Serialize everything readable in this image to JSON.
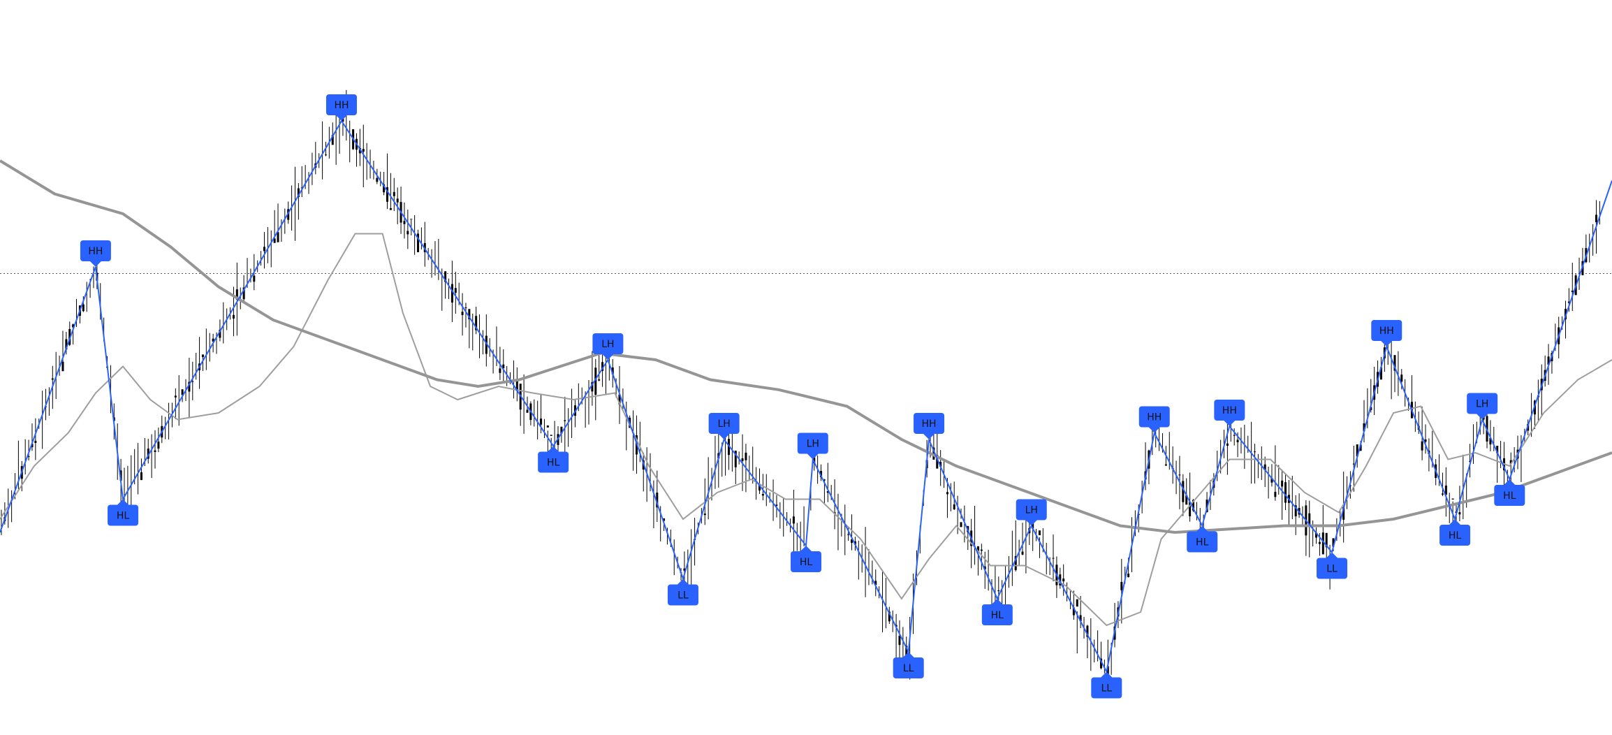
{
  "chart_data": {
    "type": "line",
    "title": "",
    "xlabel": "",
    "ylabel": "",
    "grid": false,
    "legend": "none",
    "colors": {
      "candle": "#000000",
      "zigzag": "#2962ff",
      "pivot_marker": "#2962ff",
      "fast_ma": "#9e9e9e",
      "slow_ma": "#959595",
      "reference_line": "#555555"
    },
    "reference_level": 63,
    "ylim": [
      0,
      100
    ],
    "xlim": [
      0,
      236
    ],
    "zigzag": [
      {
        "x": 0,
        "y": 24
      },
      {
        "x": 14,
        "y": 64,
        "label": "HH",
        "side": "above"
      },
      {
        "x": 18,
        "y": 29,
        "label": "HL",
        "side": "below"
      },
      {
        "x": 50,
        "y": 86,
        "label": "HH",
        "side": "above"
      },
      {
        "x": 81,
        "y": 37,
        "label": "HL",
        "side": "below"
      },
      {
        "x": 89,
        "y": 50,
        "label": "LH",
        "side": "above"
      },
      {
        "x": 100,
        "y": 17,
        "label": "LL",
        "side": "below"
      },
      {
        "x": 106,
        "y": 38,
        "label": "LH",
        "side": "above"
      },
      {
        "x": 118,
        "y": 22,
        "label": "HL",
        "side": "below"
      },
      {
        "x": 119,
        "y": 35,
        "label": "LH",
        "side": "above"
      },
      {
        "x": 133,
        "y": 6,
        "label": "LL",
        "side": "below"
      },
      {
        "x": 136,
        "y": 38,
        "label": "HH",
        "side": "above"
      },
      {
        "x": 146,
        "y": 14,
        "label": "HL",
        "side": "below"
      },
      {
        "x": 151,
        "y": 25,
        "label": "LH",
        "side": "above"
      },
      {
        "x": 162,
        "y": 3,
        "label": "LL",
        "side": "below"
      },
      {
        "x": 169,
        "y": 39,
        "label": "HH",
        "side": "above"
      },
      {
        "x": 176,
        "y": 25,
        "label": "HL",
        "side": "below"
      },
      {
        "x": 180,
        "y": 40,
        "label": "HH",
        "side": "above"
      },
      {
        "x": 195,
        "y": 21,
        "label": "LL",
        "side": "below"
      },
      {
        "x": 203,
        "y": 52,
        "label": "HH",
        "side": "above"
      },
      {
        "x": 213,
        "y": 26,
        "label": "HL",
        "side": "below"
      },
      {
        "x": 217,
        "y": 41,
        "label": "LH",
        "side": "above"
      },
      {
        "x": 221,
        "y": 32,
        "label": "HL",
        "side": "below"
      },
      {
        "x": 236,
        "y": 77
      }
    ],
    "slow_ma": [
      {
        "x": 0,
        "y": 80
      },
      {
        "x": 8,
        "y": 75
      },
      {
        "x": 18,
        "y": 72
      },
      {
        "x": 25,
        "y": 67
      },
      {
        "x": 32,
        "y": 61
      },
      {
        "x": 40,
        "y": 56
      },
      {
        "x": 48,
        "y": 53
      },
      {
        "x": 56,
        "y": 50
      },
      {
        "x": 64,
        "y": 47
      },
      {
        "x": 70,
        "y": 46
      },
      {
        "x": 76,
        "y": 47
      },
      {
        "x": 82,
        "y": 49
      },
      {
        "x": 88,
        "y": 51
      },
      {
        "x": 96,
        "y": 50
      },
      {
        "x": 104,
        "y": 47
      },
      {
        "x": 114,
        "y": 45.5
      },
      {
        "x": 124,
        "y": 43
      },
      {
        "x": 132,
        "y": 38
      },
      {
        "x": 140,
        "y": 34
      },
      {
        "x": 148,
        "y": 31
      },
      {
        "x": 156,
        "y": 28
      },
      {
        "x": 164,
        "y": 25
      },
      {
        "x": 172,
        "y": 24
      },
      {
        "x": 180,
        "y": 24.5
      },
      {
        "x": 188,
        "y": 25
      },
      {
        "x": 196,
        "y": 25
      },
      {
        "x": 204,
        "y": 26
      },
      {
        "x": 212,
        "y": 28
      },
      {
        "x": 220,
        "y": 30
      },
      {
        "x": 228,
        "y": 33
      },
      {
        "x": 236,
        "y": 36
      }
    ],
    "fast_ma": [
      {
        "x": 0,
        "y": 26
      },
      {
        "x": 5,
        "y": 34
      },
      {
        "x": 10,
        "y": 39
      },
      {
        "x": 14,
        "y": 45
      },
      {
        "x": 18,
        "y": 49
      },
      {
        "x": 22,
        "y": 44
      },
      {
        "x": 26,
        "y": 41
      },
      {
        "x": 32,
        "y": 42
      },
      {
        "x": 38,
        "y": 46
      },
      {
        "x": 43,
        "y": 52
      },
      {
        "x": 48,
        "y": 62
      },
      {
        "x": 52,
        "y": 69
      },
      {
        "x": 56,
        "y": 69
      },
      {
        "x": 59,
        "y": 57
      },
      {
        "x": 63,
        "y": 46
      },
      {
        "x": 67,
        "y": 44
      },
      {
        "x": 73,
        "y": 46
      },
      {
        "x": 78,
        "y": 45
      },
      {
        "x": 84,
        "y": 44
      },
      {
        "x": 90,
        "y": 45
      },
      {
        "x": 95,
        "y": 34
      },
      {
        "x": 100,
        "y": 26
      },
      {
        "x": 105,
        "y": 30
      },
      {
        "x": 110,
        "y": 32
      },
      {
        "x": 115,
        "y": 29
      },
      {
        "x": 120,
        "y": 29
      },
      {
        "x": 126,
        "y": 23
      },
      {
        "x": 132,
        "y": 14
      },
      {
        "x": 136,
        "y": 20
      },
      {
        "x": 140,
        "y": 25
      },
      {
        "x": 145,
        "y": 19
      },
      {
        "x": 150,
        "y": 19
      },
      {
        "x": 156,
        "y": 16
      },
      {
        "x": 162,
        "y": 10
      },
      {
        "x": 167,
        "y": 12
      },
      {
        "x": 170,
        "y": 23
      },
      {
        "x": 175,
        "y": 29
      },
      {
        "x": 180,
        "y": 35
      },
      {
        "x": 186,
        "y": 35
      },
      {
        "x": 191,
        "y": 30
      },
      {
        "x": 196,
        "y": 27
      },
      {
        "x": 200,
        "y": 34
      },
      {
        "x": 204,
        "y": 42
      },
      {
        "x": 208,
        "y": 43
      },
      {
        "x": 212,
        "y": 35
      },
      {
        "x": 216,
        "y": 36
      },
      {
        "x": 221,
        "y": 34
      },
      {
        "x": 226,
        "y": 42
      },
      {
        "x": 231,
        "y": 47
      },
      {
        "x": 236,
        "y": 50
      }
    ]
  }
}
